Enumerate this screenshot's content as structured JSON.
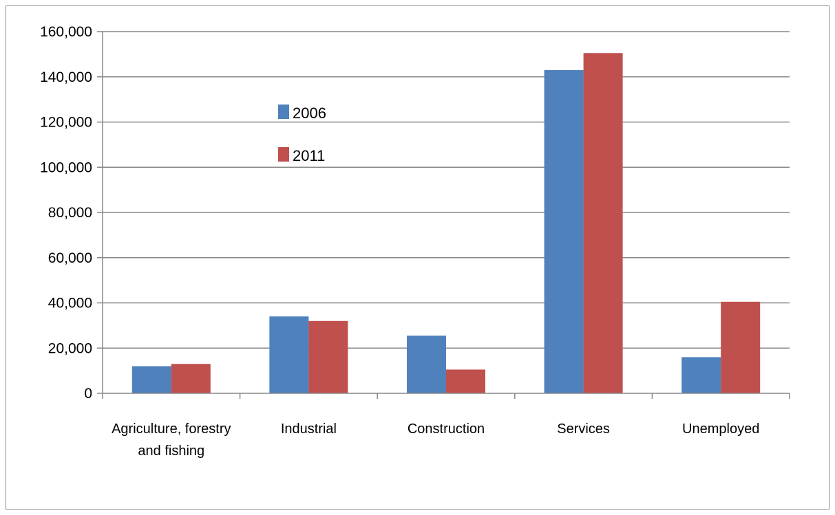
{
  "chart_data": {
    "type": "bar",
    "categories": [
      [
        "Agriculture, forestry",
        "and fishing"
      ],
      [
        "Industrial"
      ],
      [
        "Construction"
      ],
      [
        "Services"
      ],
      [
        "Unemployed"
      ]
    ],
    "series": [
      {
        "name": "2006",
        "color": "#4F81BD",
        "values": [
          12000,
          34000,
          25500,
          143000,
          16000
        ]
      },
      {
        "name": "2011",
        "color": "#C0504D",
        "values": [
          13000,
          32000,
          10500,
          150500,
          40500
        ]
      }
    ],
    "ylim": [
      0,
      160000
    ],
    "yticks": [
      "0",
      "20,000",
      "40,000",
      "60,000",
      "80,000",
      "100,000",
      "120,000",
      "140,000",
      "160,000"
    ],
    "ytick_values": [
      0,
      20000,
      40000,
      60000,
      80000,
      100000,
      120000,
      140000,
      160000
    ],
    "grid": true,
    "legend_position": "inside-upper-left"
  }
}
